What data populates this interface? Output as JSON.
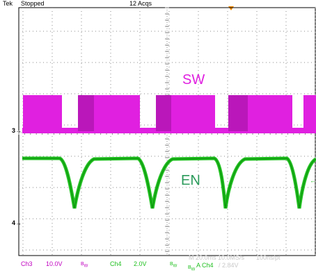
{
  "header": {
    "brand": "Tek",
    "run_state": "Stopped",
    "acquisitions": "12 Acqs"
  },
  "channels": {
    "ch3": {
      "marker": "3",
      "label": "Ch3",
      "scale": "10.0V",
      "bandwidth": "B",
      "bandwidth_sub": "W",
      "trace_label": "SW",
      "color": "#e020e0"
    },
    "ch4": {
      "marker": "4",
      "label": "Ch4",
      "scale": "2.0V",
      "bandwidth": "B",
      "bandwidth_sub": "W",
      "trace_label": "EN",
      "color": "#20c020"
    }
  },
  "footer": {
    "timebase": "M 20.0ms 10.0MS/s",
    "resolution": "100ns/pt",
    "trigger_bw": "B",
    "trigger_bw_sub": "W",
    "trigger_source": "A  Ch4",
    "trigger_level": "/ 2.84V",
    "trigger_source_color": "#20c020",
    "faded_color": "#c8c8c8"
  },
  "colors": {
    "graticule": "#8a8a8a",
    "trace_label": "#e020e0",
    "en_label": "#2a9a5a",
    "trigger_marker": "#f08a00"
  }
}
